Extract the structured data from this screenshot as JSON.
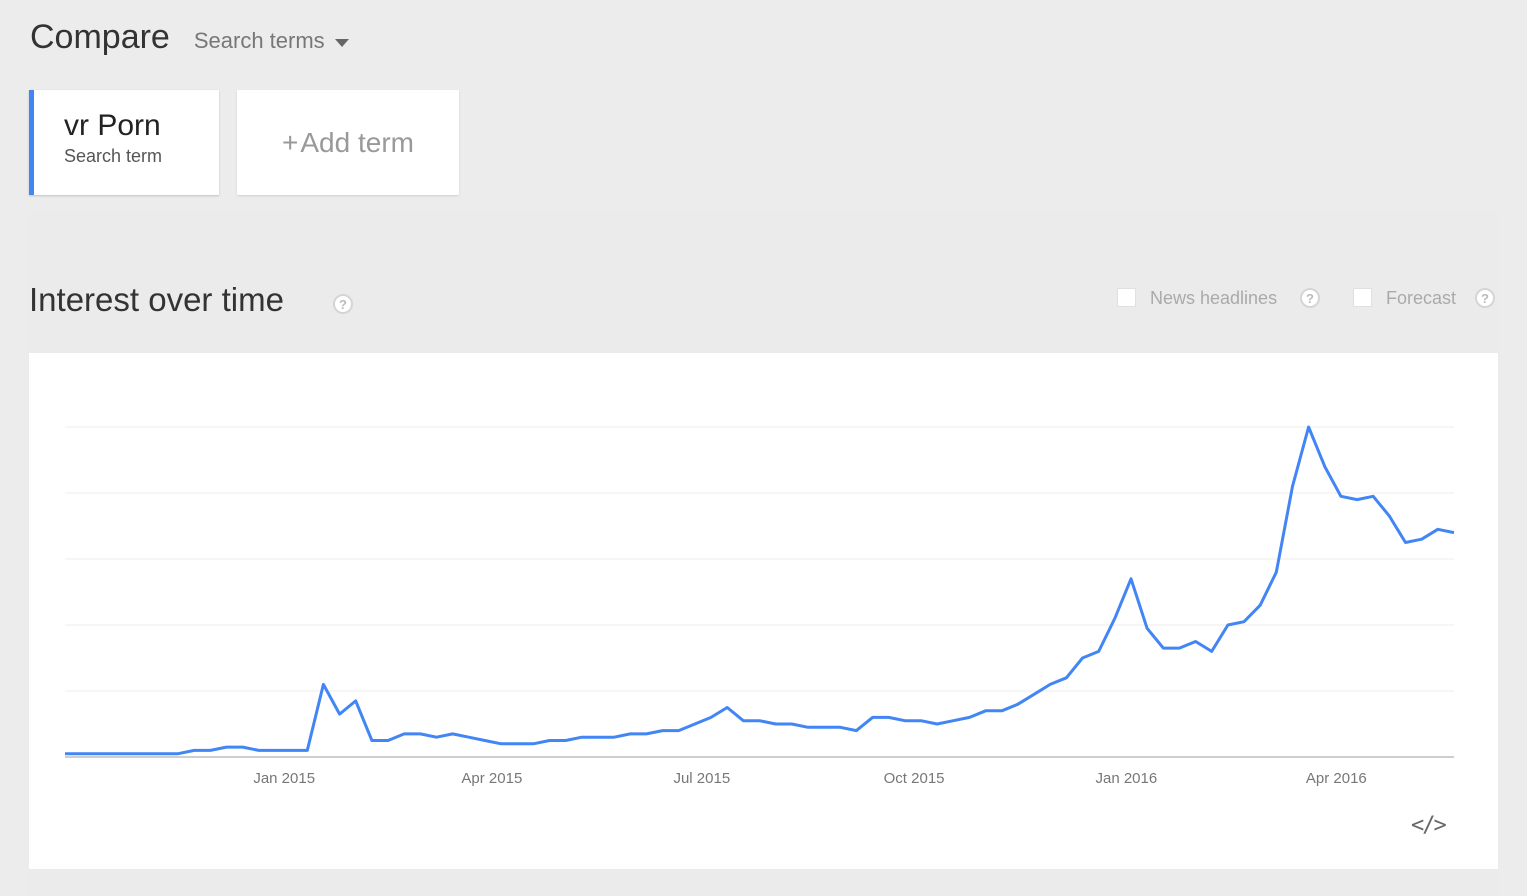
{
  "header": {
    "compare_label": "Compare",
    "search_terms_label": "Search terms"
  },
  "terms": [
    {
      "name": "vr Porn",
      "subtitle": "Search term",
      "color": "#4285f4"
    }
  ],
  "add_term": {
    "plus": "+",
    "label": "Add term"
  },
  "section": {
    "title": "Interest over time",
    "help_glyph": "?",
    "options": [
      {
        "label": "News headlines",
        "checked": false
      },
      {
        "label": "Forecast",
        "checked": false
      }
    ]
  },
  "embed_icon": "</>",
  "chart_data": {
    "type": "line",
    "title": "",
    "xlabel": "",
    "ylabel": "",
    "ylim": [
      0,
      100
    ],
    "grid": true,
    "x_start": "2014-09-28",
    "x_step_days": 7,
    "x_ticks": [
      {
        "date": "2015-01-01",
        "label": "Jan 2015"
      },
      {
        "date": "2015-04-01",
        "label": "Apr 2015"
      },
      {
        "date": "2015-07-01",
        "label": "Jul 2015"
      },
      {
        "date": "2015-10-01",
        "label": "Oct 2015"
      },
      {
        "date": "2016-01-01",
        "label": "Jan 2016"
      },
      {
        "date": "2016-04-01",
        "label": "Apr 2016"
      }
    ],
    "y_gridlines": [
      0,
      20,
      40,
      60,
      80,
      100
    ],
    "series": [
      {
        "name": "vr Porn",
        "color": "#4285f4",
        "values": [
          1,
          1,
          1,
          1,
          1,
          1,
          1,
          1,
          2,
          2,
          3,
          3,
          2,
          2,
          2,
          2,
          22,
          13,
          17,
          5,
          5,
          7,
          7,
          6,
          7,
          6,
          5,
          4,
          4,
          4,
          5,
          5,
          6,
          6,
          6,
          7,
          7,
          8,
          8,
          10,
          12,
          15,
          11,
          11,
          10,
          10,
          9,
          9,
          9,
          8,
          12,
          12,
          11,
          11,
          10,
          11,
          12,
          14,
          14,
          16,
          19,
          22,
          24,
          30,
          32,
          42,
          54,
          39,
          33,
          33,
          35,
          32,
          40,
          41,
          46,
          56,
          82,
          100,
          88,
          79,
          78,
          79,
          73,
          65,
          66,
          69,
          68
        ]
      }
    ]
  }
}
